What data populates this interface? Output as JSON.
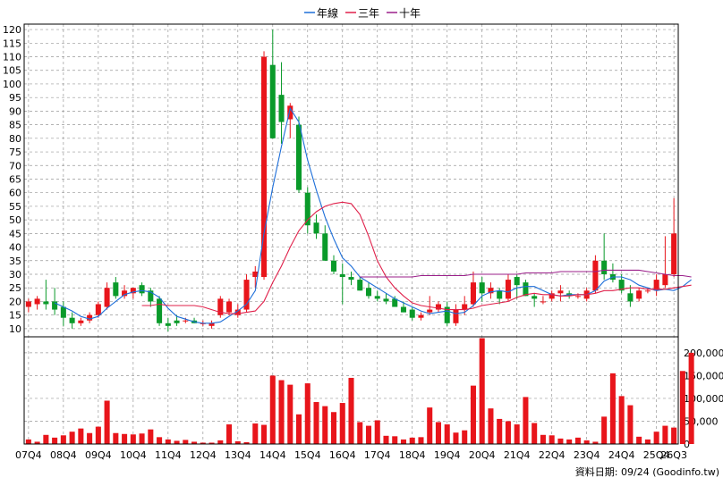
{
  "legend": [
    {
      "label": "年線",
      "color": "#1e6fd9"
    },
    {
      "label": "三年",
      "color": "#e0204a"
    },
    {
      "label": "十年",
      "color": "#9b1f8a"
    }
  ],
  "source_text": "資料日期: 09/24  (Goodinfo.tw)",
  "colors": {
    "up": "#e8151b",
    "down": "#0a9a2a",
    "grid": "#999999",
    "volume": "#e8151b"
  },
  "chart_data": {
    "type": "candlestick",
    "price_axis": {
      "ticks": [
        10,
        15,
        20,
        25,
        30,
        35,
        40,
        45,
        50,
        55,
        60,
        65,
        70,
        75,
        80,
        85,
        90,
        95,
        100,
        105,
        110,
        115,
        120
      ],
      "ylim": [
        7,
        122
      ],
      "position": "left"
    },
    "volume_axis": {
      "ticks": [
        "0",
        "50,000",
        "100,000",
        "150,000",
        "200,000"
      ],
      "tick_values": [
        0,
        50000,
        100000,
        150000,
        200000
      ],
      "ylim": [
        0,
        235000
      ],
      "position": "right"
    },
    "x_tick_labels": [
      "07Q4",
      "08Q4",
      "09Q4",
      "10Q4",
      "11Q4",
      "12Q4",
      "13Q4",
      "14Q4",
      "15Q4",
      "16Q4",
      "17Q4",
      "18Q4",
      "19Q4",
      "20Q4",
      "21Q4",
      "22Q4",
      "23Q4",
      "24Q4",
      "25Q4",
      "26Q3"
    ],
    "candles": [
      {
        "o": 18,
        "h": 21,
        "l": 16,
        "c": 20
      },
      {
        "o": 19,
        "h": 22,
        "l": 17,
        "c": 21
      },
      {
        "o": 20,
        "h": 28,
        "l": 17,
        "c": 19
      },
      {
        "o": 20,
        "h": 25,
        "l": 15,
        "c": 17
      },
      {
        "o": 18,
        "h": 20,
        "l": 11,
        "c": 14
      },
      {
        "o": 14,
        "h": 16,
        "l": 10,
        "c": 12
      },
      {
        "o": 12,
        "h": 14,
        "l": 11,
        "c": 13
      },
      {
        "o": 13,
        "h": 16,
        "l": 12,
        "c": 15
      },
      {
        "o": 15,
        "h": 20,
        "l": 14,
        "c": 19
      },
      {
        "o": 18,
        "h": 27,
        "l": 17,
        "c": 25
      },
      {
        "o": 27,
        "h": 29,
        "l": 21,
        "c": 22
      },
      {
        "o": 22,
        "h": 26,
        "l": 21,
        "c": 24
      },
      {
        "o": 23,
        "h": 25,
        "l": 21,
        "c": 25
      },
      {
        "o": 26,
        "h": 27,
        "l": 22,
        "c": 23
      },
      {
        "o": 24,
        "h": 25,
        "l": 18,
        "c": 20
      },
      {
        "o": 21,
        "h": 22,
        "l": 11,
        "c": 12
      },
      {
        "o": 12,
        "h": 14,
        "l": 9,
        "c": 11
      },
      {
        "o": 13,
        "h": 15,
        "l": 11,
        "c": 12
      },
      {
        "o": 13,
        "h": 14,
        "l": 12,
        "c": 13
      },
      {
        "o": 13,
        "h": 14,
        "l": 12,
        "c": 12
      },
      {
        "o": 12,
        "h": 13,
        "l": 11,
        "c": 12
      },
      {
        "o": 11,
        "h": 13,
        "l": 10,
        "c": 12
      },
      {
        "o": 15,
        "h": 22,
        "l": 14,
        "c": 21
      },
      {
        "o": 16,
        "h": 21,
        "l": 15,
        "c": 20
      },
      {
        "o": 15,
        "h": 19,
        "l": 14,
        "c": 17
      },
      {
        "o": 17,
        "h": 30,
        "l": 16,
        "c": 28
      },
      {
        "o": 29,
        "h": 33,
        "l": 25,
        "c": 31
      },
      {
        "o": 29,
        "h": 112,
        "l": 28,
        "c": 110
      },
      {
        "o": 107,
        "h": 120,
        "l": 80,
        "c": 80
      },
      {
        "o": 96,
        "h": 108,
        "l": 78,
        "c": 86
      },
      {
        "o": 87,
        "h": 93,
        "l": 80,
        "c": 92
      },
      {
        "o": 85,
        "h": 88,
        "l": 60,
        "c": 61
      },
      {
        "o": 60,
        "h": 62,
        "l": 45,
        "c": 48
      },
      {
        "o": 49,
        "h": 52,
        "l": 43,
        "c": 45
      },
      {
        "o": 45,
        "h": 48,
        "l": 35,
        "c": 35
      },
      {
        "o": 35,
        "h": 37,
        "l": 30,
        "c": 31
      },
      {
        "o": 30,
        "h": 34,
        "l": 19,
        "c": 29
      },
      {
        "o": 29,
        "h": 31,
        "l": 26,
        "c": 28
      },
      {
        "o": 28,
        "h": 29,
        "l": 24,
        "c": 24
      },
      {
        "o": 25,
        "h": 27,
        "l": 21,
        "c": 22
      },
      {
        "o": 22,
        "h": 24,
        "l": 20,
        "c": 21
      },
      {
        "o": 21,
        "h": 23,
        "l": 19,
        "c": 20
      },
      {
        "o": 21,
        "h": 22,
        "l": 18,
        "c": 18
      },
      {
        "o": 18,
        "h": 20,
        "l": 16,
        "c": 16
      },
      {
        "o": 17,
        "h": 18,
        "l": 13,
        "c": 14
      },
      {
        "o": 14,
        "h": 16,
        "l": 13,
        "c": 15
      },
      {
        "o": 16,
        "h": 22,
        "l": 15,
        "c": 17
      },
      {
        "o": 17,
        "h": 20,
        "l": 16,
        "c": 19
      },
      {
        "o": 18,
        "h": 20,
        "l": 11,
        "c": 12
      },
      {
        "o": 12,
        "h": 19,
        "l": 11,
        "c": 17
      },
      {
        "o": 17,
        "h": 22,
        "l": 15,
        "c": 19
      },
      {
        "o": 19,
        "h": 31,
        "l": 18,
        "c": 27
      },
      {
        "o": 27,
        "h": 29,
        "l": 20,
        "c": 23
      },
      {
        "o": 23,
        "h": 27,
        "l": 21,
        "c": 25
      },
      {
        "o": 24,
        "h": 25,
        "l": 19,
        "c": 21
      },
      {
        "o": 21,
        "h": 30,
        "l": 20,
        "c": 28
      },
      {
        "o": 29,
        "h": 30,
        "l": 21,
        "c": 26
      },
      {
        "o": 27,
        "h": 28,
        "l": 22,
        "c": 22
      },
      {
        "o": 22,
        "h": 23,
        "l": 18,
        "c": 21
      },
      {
        "o": 20,
        "h": 22,
        "l": 19,
        "c": 20
      },
      {
        "o": 21,
        "h": 24,
        "l": 20,
        "c": 23
      },
      {
        "o": 23,
        "h": 26,
        "l": 20,
        "c": 24
      },
      {
        "o": 23,
        "h": 24,
        "l": 21,
        "c": 22
      },
      {
        "o": 22,
        "h": 23,
        "l": 21,
        "c": 22
      },
      {
        "o": 21,
        "h": 25,
        "l": 20,
        "c": 24
      },
      {
        "o": 24,
        "h": 37,
        "l": 23,
        "c": 35
      },
      {
        "o": 35,
        "h": 45,
        "l": 28,
        "c": 30
      },
      {
        "o": 30,
        "h": 34,
        "l": 27,
        "c": 28
      },
      {
        "o": 28,
        "h": 30,
        "l": 23,
        "c": 24
      },
      {
        "o": 23,
        "h": 26,
        "l": 18,
        "c": 20
      },
      {
        "o": 21,
        "h": 25,
        "l": 20,
        "c": 24
      },
      {
        "o": 24,
        "h": 25,
        "l": 23,
        "c": 24
      },
      {
        "o": 24,
        "h": 30,
        "l": 22,
        "c": 28
      },
      {
        "o": 26,
        "h": 44,
        "l": 25,
        "c": 30
      },
      {
        "o": 30,
        "h": 58,
        "l": 29,
        "c": 45
      }
    ],
    "volume": [
      10000,
      5000,
      20000,
      14000,
      19000,
      27000,
      34000,
      24000,
      38000,
      95000,
      24000,
      22000,
      21000,
      23000,
      32000,
      15000,
      10000,
      7000,
      9000,
      5000,
      3000,
      3000,
      8000,
      43000,
      6000,
      4000,
      45000,
      42000,
      150000,
      140000,
      130000,
      65000,
      133000,
      92000,
      83000,
      70000,
      90000,
      145000,
      48000,
      40000,
      52000,
      18000,
      17000,
      10000,
      14000,
      15000,
      80000,
      48000,
      43000,
      25000,
      30000,
      128000,
      232000,
      78000,
      55000,
      50000,
      43000,
      103000,
      46000,
      20000,
      19000,
      12000,
      10000,
      14000,
      8000,
      5000,
      60000,
      155000,
      105000,
      85000,
      16000,
      10000,
      27000,
      40000,
      36000,
      160000,
      200000
    ],
    "series": [
      {
        "name": "年線",
        "values": [
          null,
          null,
          null,
          19.5,
          18.0,
          16.5,
          14.5,
          13.5,
          14.5,
          17.5,
          20.0,
          22.5,
          23.5,
          24.0,
          23.5,
          21.5,
          17.5,
          14.5,
          13.5,
          12.5,
          12.0,
          12.0,
          12.5,
          14.5,
          16.5,
          19.0,
          24.0,
          45.0,
          62.0,
          77.0,
          91.0,
          86.0,
          72.0,
          61.0,
          51.0,
          43.0,
          36.0,
          33.0,
          29.0,
          27.0,
          25.0,
          23.0,
          21.0,
          19.5,
          18.0,
          16.5,
          15.5,
          16.0,
          16.5,
          15.5,
          16.0,
          18.5,
          22.0,
          23.5,
          24.0,
          23.5,
          25.0,
          25.5,
          25.5,
          24.0,
          22.5,
          22.0,
          22.5,
          22.5,
          22.5,
          24.0,
          27.5,
          29.0,
          29.0,
          28.0,
          26.0,
          25.0,
          24.0,
          24.5,
          24.0,
          25.5,
          28.0
        ]
      },
      {
        "name": "三年",
        "values": [
          null,
          null,
          null,
          null,
          null,
          null,
          null,
          null,
          null,
          null,
          null,
          null,
          null,
          18.5,
          18.5,
          19.0,
          18.5,
          18.5,
          18.5,
          18.5,
          18.0,
          17.0,
          16.0,
          15.5,
          15.5,
          16.0,
          16.5,
          20.0,
          27.0,
          33.0,
          40.0,
          46.0,
          50.0,
          53.0,
          55.0,
          56.0,
          56.5,
          56.0,
          52.0,
          44.0,
          35.0,
          29.0,
          25.0,
          22.0,
          19.5,
          18.5,
          18.0,
          17.5,
          17.0,
          17.0,
          17.0,
          17.5,
          18.5,
          19.0,
          19.5,
          20.0,
          21.5,
          22.5,
          23.0,
          22.5,
          22.5,
          22.0,
          22.0,
          22.5,
          22.5,
          23.0,
          24.0,
          24.0,
          24.5,
          25.0,
          25.0,
          24.5,
          24.5,
          24.5,
          25.0,
          25.5,
          26.0
        ]
      },
      {
        "name": "十年",
        "values": [
          null,
          null,
          null,
          null,
          null,
          null,
          null,
          null,
          null,
          null,
          null,
          null,
          null,
          null,
          null,
          null,
          null,
          null,
          null,
          null,
          null,
          null,
          null,
          null,
          null,
          null,
          null,
          null,
          null,
          null,
          null,
          null,
          null,
          null,
          null,
          null,
          null,
          null,
          29.0,
          29.0,
          29.0,
          29.0,
          29.0,
          29.0,
          29.0,
          29.5,
          29.5,
          29.5,
          29.5,
          29.5,
          29.5,
          30.0,
          30.0,
          30.0,
          30.0,
          30.0,
          30.0,
          30.5,
          30.5,
          30.5,
          30.5,
          31.0,
          31.0,
          31.0,
          31.0,
          31.0,
          31.5,
          31.5,
          31.5,
          31.5,
          31.5,
          31.0,
          30.5,
          30.0,
          29.5,
          29.5,
          29.0
        ]
      }
    ]
  }
}
